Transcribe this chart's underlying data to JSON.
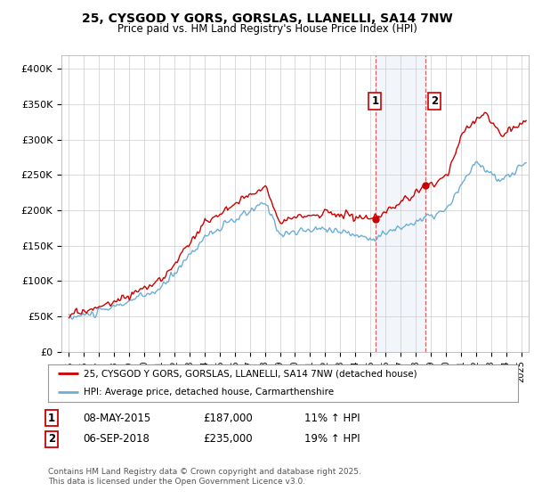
{
  "title": "25, CYSGOD Y GORS, GORSLAS, LLANELLI, SA14 7NW",
  "subtitle": "Price paid vs. HM Land Registry's House Price Index (HPI)",
  "ylabel_ticks": [
    "£0",
    "£50K",
    "£100K",
    "£150K",
    "£200K",
    "£250K",
    "£300K",
    "£350K",
    "£400K"
  ],
  "ytick_vals": [
    0,
    50000,
    100000,
    150000,
    200000,
    250000,
    300000,
    350000,
    400000
  ],
  "ylim": [
    0,
    420000
  ],
  "xlim_start": 1994.5,
  "xlim_end": 2025.5,
  "hpi_color": "#6baed6",
  "price_color": "#cc0000",
  "shade_x1": 2015.35,
  "shade_x2": 2018.68,
  "legend_label1": "25, CYSGOD Y GORS, GORSLAS, LLANELLI, SA14 7NW (detached house)",
  "legend_label2": "HPI: Average price, detached house, Carmarthenshire",
  "note1_label": "1",
  "note1_date": "08-MAY-2015",
  "note1_price": "£187,000",
  "note1_hpi": "11% ↑ HPI",
  "note2_label": "2",
  "note2_date": "06-SEP-2018",
  "note2_price": "£235,000",
  "note2_hpi": "19% ↑ HPI",
  "footer": "Contains HM Land Registry data © Crown copyright and database right 2025.\nThis data is licensed under the Open Government Licence v3.0.",
  "background_color": "#ffffff",
  "plot_bg_color": "#ffffff",
  "grid_color": "#cccccc"
}
